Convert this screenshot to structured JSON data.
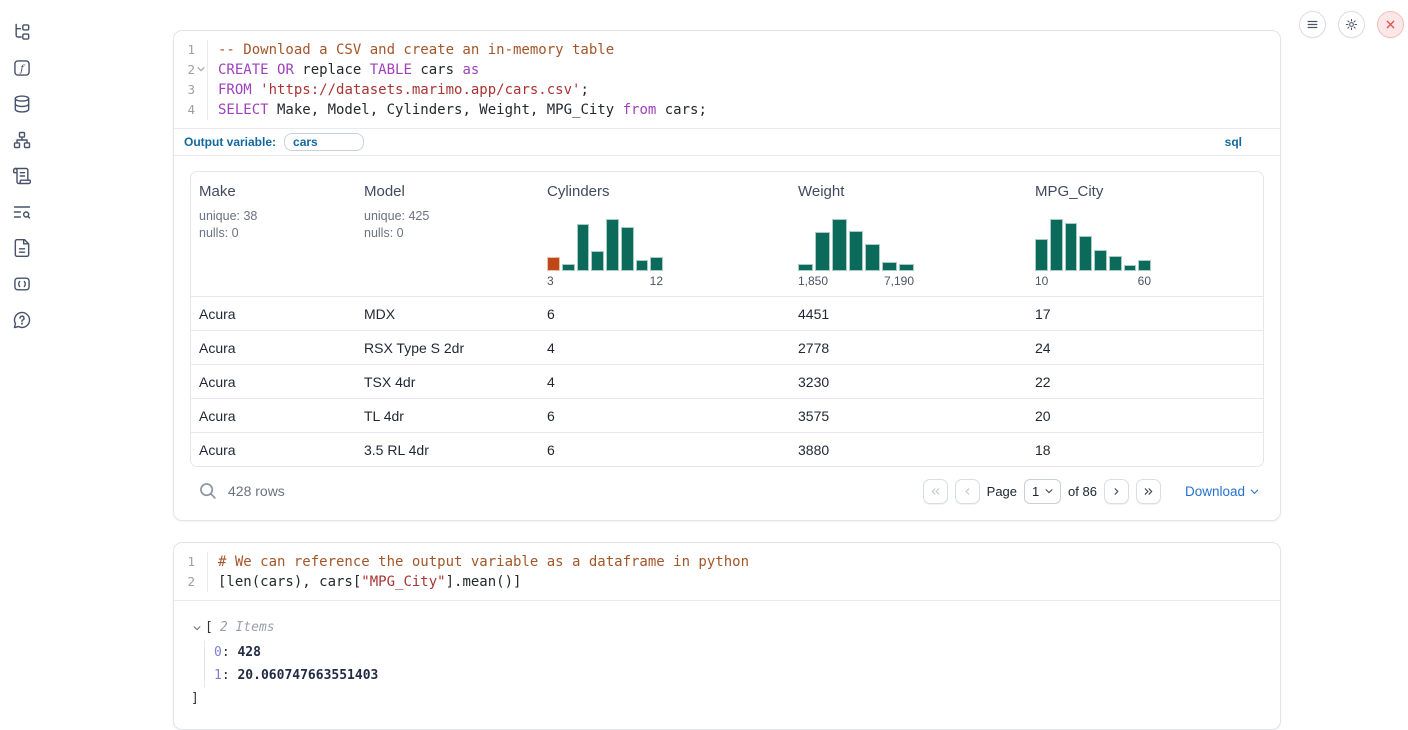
{
  "colors": {
    "accent_blue": "#13689e",
    "link_blue": "#2571cf",
    "hist_green": "#0b6a5a",
    "hist_orange": "#bf4817",
    "close_red": "#e14f4f",
    "keyword_purple": "#9d42bb",
    "comment_brown": "#a4562a",
    "string_red": "#a93434"
  },
  "sidebar": {
    "icons": [
      {
        "name": "file-explorer-tree-icon"
      },
      {
        "name": "variables-icon"
      },
      {
        "name": "datasources-icon"
      },
      {
        "name": "dependency-graph-icon"
      },
      {
        "name": "documentation-scroll-icon"
      },
      {
        "name": "logs-search-icon"
      },
      {
        "name": "scratchpad-file-icon"
      },
      {
        "name": "snippets-icon"
      },
      {
        "name": "help-icon"
      }
    ]
  },
  "window_controls": {
    "menu": "menu",
    "settings": "settings",
    "close": "close"
  },
  "sql_cell": {
    "code_lines": [
      {
        "num": "1",
        "fold": false,
        "tokens": [
          {
            "c": "comment",
            "t": "-- Download a CSV and create an in-memory table"
          }
        ]
      },
      {
        "num": "2",
        "fold": true,
        "tokens": [
          {
            "c": "keyword",
            "t": "CREATE"
          },
          {
            "c": "plain",
            "t": " "
          },
          {
            "c": "keyword",
            "t": "OR"
          },
          {
            "c": "plain",
            "t": " replace "
          },
          {
            "c": "keyword",
            "t": "TABLE"
          },
          {
            "c": "plain",
            "t": " cars "
          },
          {
            "c": "keyword",
            "t": "as"
          }
        ]
      },
      {
        "num": "3",
        "fold": false,
        "tokens": [
          {
            "c": "keyword",
            "t": "FROM"
          },
          {
            "c": "plain",
            "t": " "
          },
          {
            "c": "string",
            "t": "'https://datasets.marimo.app/cars.csv'"
          },
          {
            "c": "plain",
            "t": ";"
          }
        ]
      },
      {
        "num": "4",
        "fold": false,
        "tokens": [
          {
            "c": "keyword",
            "t": "SELECT"
          },
          {
            "c": "plain",
            "t": " Make, Model, Cylinders, Weight, MPG_City "
          },
          {
            "c": "keyword",
            "t": "from"
          },
          {
            "c": "plain",
            "t": " cars;"
          }
        ]
      }
    ],
    "output_variable": {
      "label": "Output variable:",
      "value": "cars"
    },
    "language_badge": "sql"
  },
  "table": {
    "columns": [
      {
        "name": "Make",
        "unique": "unique: 38",
        "nulls": "nulls: 0"
      },
      {
        "name": "Model",
        "unique": "unique: 425",
        "nulls": "nulls: 0"
      },
      {
        "name": "Cylinders",
        "histogram": {
          "values": [
            0.27,
            0.13,
            0.9,
            0.38,
            1,
            0.85,
            0.21,
            0.27
          ],
          "highlight_index": 0,
          "min_label": "3",
          "max_label": "12"
        }
      },
      {
        "name": "Weight",
        "histogram": {
          "values": [
            0.13,
            0.75,
            1,
            0.77,
            0.52,
            0.17,
            0.13
          ],
          "highlight_index": -1,
          "min_label": "1,850",
          "max_label": "7,190"
        }
      },
      {
        "name": "MPG_City",
        "histogram": {
          "values": [
            0.62,
            1,
            0.92,
            0.67,
            0.4,
            0.29,
            0.12,
            0.21
          ],
          "highlight_index": -1,
          "min_label": "10",
          "max_label": "60"
        }
      }
    ],
    "rows": [
      [
        "Acura",
        "MDX",
        "6",
        "4451",
        "17"
      ],
      [
        "Acura",
        "RSX Type S 2dr",
        "4",
        "2778",
        "24"
      ],
      [
        "Acura",
        "TSX 4dr",
        "4",
        "3230",
        "22"
      ],
      [
        "Acura",
        "TL 4dr",
        "6",
        "3575",
        "20"
      ],
      [
        "Acura",
        "3.5 RL 4dr",
        "6",
        "3880",
        "18"
      ]
    ],
    "footer": {
      "row_count": "428 rows",
      "pagination": {
        "page_label": "Page",
        "page_value": "1",
        "of_label": "of 86"
      },
      "download_label": "Download"
    }
  },
  "python_cell": {
    "code_lines": [
      {
        "num": "1",
        "fold": false,
        "tokens": [
          {
            "c": "comment",
            "t": "# We can reference the output variable as a dataframe in python"
          }
        ]
      },
      {
        "num": "2",
        "fold": false,
        "tokens": [
          {
            "c": "plain",
            "t": "[len(cars), cars["
          },
          {
            "c": "string",
            "t": "\"MPG_City\""
          },
          {
            "c": "plain",
            "t": "].mean()]"
          }
        ]
      }
    ],
    "output": {
      "open_bracket": "[",
      "items_label": "2 Items",
      "entries": [
        {
          "index": "0",
          "value": "428"
        },
        {
          "index": "1",
          "value": "20.060747663551403"
        }
      ],
      "close_bracket": "]"
    }
  },
  "chart_data": [
    {
      "type": "bar",
      "title": "Cylinders histogram",
      "values": [
        0.27,
        0.13,
        0.9,
        0.38,
        1,
        0.85,
        0.21,
        0.27
      ],
      "x_min_label": "3",
      "x_max_label": "12",
      "highlight_first_bar": true
    },
    {
      "type": "bar",
      "title": "Weight histogram",
      "values": [
        0.13,
        0.75,
        1,
        0.77,
        0.52,
        0.17,
        0.13
      ],
      "x_min_label": "1,850",
      "x_max_label": "7,190"
    },
    {
      "type": "bar",
      "title": "MPG_City histogram",
      "values": [
        0.62,
        1,
        0.92,
        0.67,
        0.4,
        0.29,
        0.12,
        0.21
      ],
      "x_min_label": "10",
      "x_max_label": "60"
    }
  ]
}
